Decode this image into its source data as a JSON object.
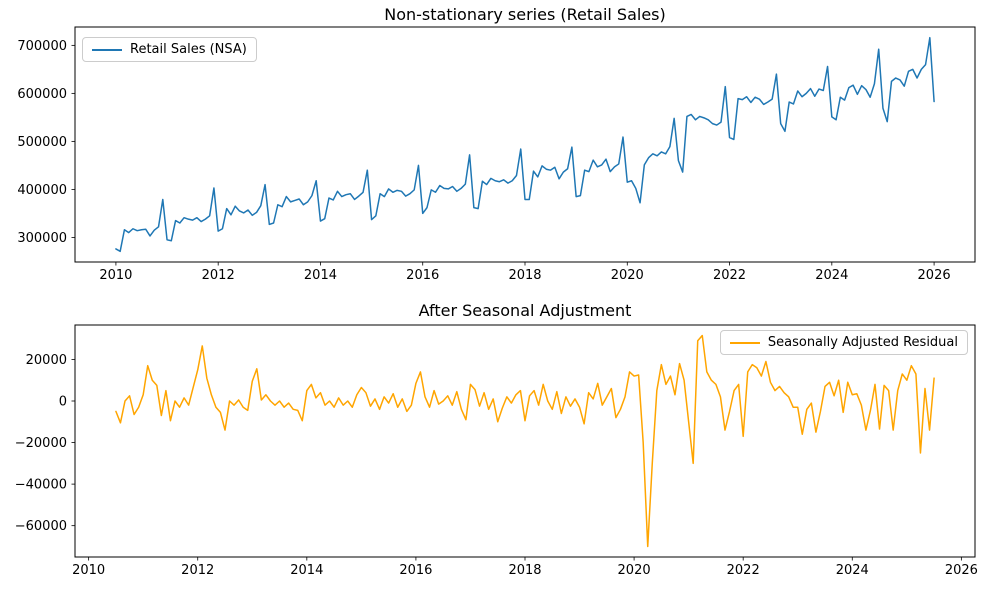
{
  "figure": {
    "background": "#ffffff",
    "frame_color": "#000000",
    "text_color": "#000000"
  },
  "chart_data": [
    {
      "type": "line",
      "title": "Non-stationary series (Retail Sales)",
      "xlabel": "",
      "ylabel": "",
      "grid": false,
      "legend_position": "upper left",
      "x_ticks": [
        2010,
        2012,
        2014,
        2016,
        2018,
        2020,
        2022,
        2024,
        2026
      ],
      "y_ticks": [
        300000,
        400000,
        500000,
        600000,
        700000
      ],
      "x_unit": "year (monthly data)",
      "series": [
        {
          "name": "Retail Sales (NSA)",
          "color": "#1f77b4",
          "start": "2010-01",
          "frequency": "monthly",
          "values": [
            276000,
            271000,
            316000,
            310000,
            318000,
            314000,
            316000,
            317000,
            303000,
            315000,
            322000,
            379000,
            295000,
            293000,
            335000,
            330000,
            341000,
            338000,
            336000,
            341000,
            333000,
            338000,
            345000,
            403000,
            313000,
            318000,
            360000,
            347000,
            365000,
            355000,
            351000,
            357000,
            346000,
            352000,
            366000,
            410000,
            327000,
            330000,
            368000,
            364000,
            385000,
            374000,
            377000,
            380000,
            368000,
            374000,
            387000,
            418000,
            334000,
            339000,
            382000,
            378000,
            396000,
            385000,
            389000,
            391000,
            379000,
            386000,
            394000,
            440000,
            337000,
            345000,
            391000,
            385000,
            401000,
            394000,
            398000,
            396000,
            386000,
            391000,
            399000,
            450000,
            350000,
            362000,
            399000,
            394000,
            408000,
            402000,
            401000,
            406000,
            396000,
            402000,
            411000,
            472000,
            362000,
            360000,
            417000,
            410000,
            423000,
            418000,
            416000,
            420000,
            413000,
            418000,
            429000,
            484000,
            379000,
            379000,
            438000,
            426000,
            449000,
            442000,
            440000,
            446000,
            422000,
            436000,
            443000,
            488000,
            385000,
            387000,
            440000,
            437000,
            461000,
            447000,
            451000,
            463000,
            437000,
            447000,
            453000,
            509000,
            415000,
            418000,
            402000,
            372000,
            451000,
            466000,
            474000,
            470000,
            478000,
            474000,
            489000,
            548000,
            460000,
            436000,
            552000,
            556000,
            545000,
            552000,
            549000,
            545000,
            537000,
            534000,
            540000,
            614000,
            508000,
            504000,
            589000,
            587000,
            593000,
            581000,
            592000,
            588000,
            577000,
            582000,
            588000,
            640000,
            537000,
            521000,
            582000,
            578000,
            605000,
            593000,
            600000,
            610000,
            594000,
            609000,
            606000,
            656000,
            551000,
            545000,
            592000,
            586000,
            612000,
            617000,
            598000,
            616000,
            608000,
            592000,
            620000,
            692000,
            569000,
            541000,
            625000,
            632000,
            628000,
            615000,
            646000,
            650000,
            632000,
            650000,
            660000,
            716000,
            583000
          ]
        }
      ]
    },
    {
      "type": "line",
      "title": "After Seasonal Adjustment",
      "xlabel": "",
      "ylabel": "",
      "grid": false,
      "legend_position": "upper right",
      "x_ticks": [
        2010,
        2012,
        2014,
        2016,
        2018,
        2020,
        2022,
        2024,
        2026
      ],
      "y_ticks": [
        -60000,
        -40000,
        -20000,
        0,
        20000
      ],
      "x_unit": "year (monthly data)",
      "series": [
        {
          "name": "Seasonally Adjusted Residual",
          "color": "#ffa500",
          "start": "2010-07",
          "frequency": "monthly",
          "values": [
            -5000,
            -10500,
            0,
            2500,
            -6500,
            -3000,
            3000,
            17000,
            10000,
            7500,
            -7000,
            5000,
            -9500,
            0,
            -3000,
            1500,
            -2000,
            6500,
            15000,
            26500,
            11000,
            3000,
            -3000,
            -5500,
            -14000,
            0,
            -2000,
            500,
            -3000,
            -4500,
            9500,
            15500,
            500,
            3000,
            0,
            -2000,
            0,
            -3000,
            -1000,
            -4000,
            -4500,
            -9500,
            5000,
            8000,
            1500,
            4000,
            -2000,
            0,
            -3000,
            1500,
            -2000,
            0,
            -3000,
            3000,
            6500,
            4000,
            -2500,
            1000,
            -4000,
            2000,
            -1000,
            3500,
            -3000,
            1000,
            -5000,
            -2000,
            8500,
            14000,
            2000,
            -3000,
            5000,
            -1500,
            0,
            2500,
            -2000,
            4500,
            -4000,
            -9000,
            8000,
            5500,
            -2500,
            4000,
            -4000,
            1000,
            -10000,
            -3500,
            2000,
            -1000,
            3000,
            5000,
            -9500,
            2500,
            5000,
            -2000,
            8000,
            0,
            -4000,
            4500,
            -6000,
            2000,
            -2500,
            1000,
            -3000,
            -11000,
            4000,
            1000,
            8500,
            -2000,
            2000,
            6000,
            -8000,
            -4000,
            2000,
            14000,
            12000,
            12500,
            -20000,
            -70000,
            -30000,
            5000,
            17500,
            8000,
            12000,
            3000,
            18000,
            10000,
            -10000,
            -30000,
            29000,
            31500,
            14000,
            10000,
            8000,
            2000,
            -14000,
            -5000,
            5000,
            8000,
            -17000,
            14000,
            17500,
            16000,
            12000,
            19000,
            9000,
            5000,
            7000,
            4000,
            2000,
            -3000,
            -3000,
            -16000,
            -4000,
            -1000,
            -15000,
            -5000,
            7000,
            9000,
            2500,
            10000,
            -5500,
            9000,
            3000,
            3500,
            -2000,
            -14000,
            -4500,
            8000,
            -13500,
            7500,
            5000,
            -14000,
            5000,
            13000,
            10000,
            17000,
            13000,
            -25000,
            6000,
            -14000,
            11000
          ]
        }
      ]
    }
  ]
}
